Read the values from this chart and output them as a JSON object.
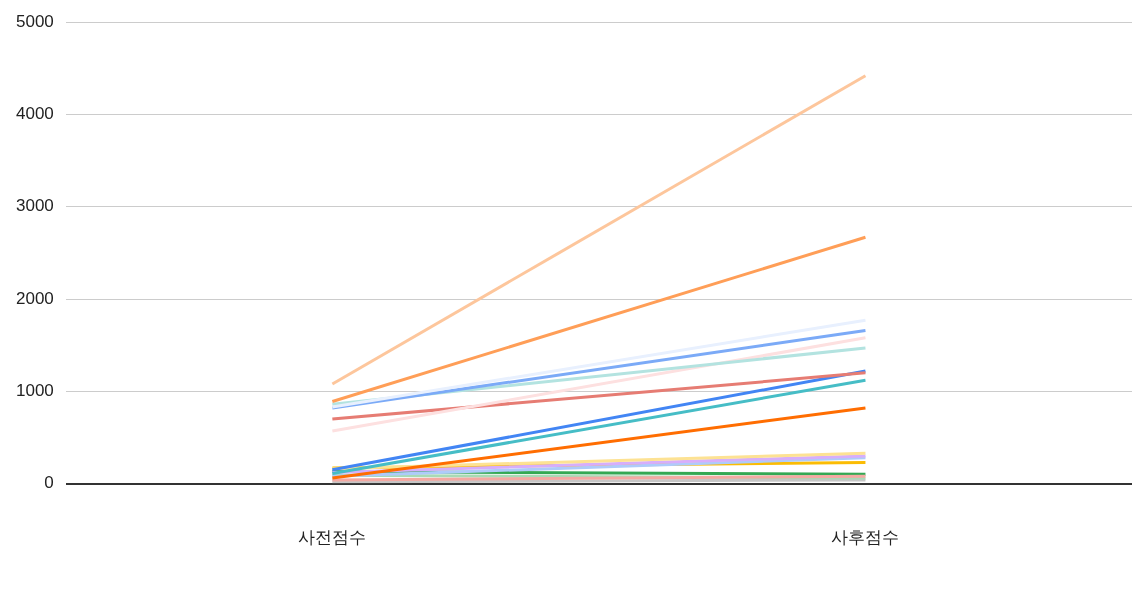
{
  "chart_data": {
    "type": "line",
    "categories": [
      "사전점수",
      "사후점수"
    ],
    "series": [
      {
        "color": "#fdc69c",
        "values": [
          1080,
          4420
        ]
      },
      {
        "color": "#ff9e57",
        "values": [
          890,
          2670
        ]
      },
      {
        "color": "#e8f0fe",
        "values": [
          830,
          1770
        ]
      },
      {
        "color": "#7baaf7",
        "values": [
          820,
          1660
        ]
      },
      {
        "color": "#b3e3e0",
        "values": [
          860,
          1470
        ]
      },
      {
        "color": "#fde0e0",
        "values": [
          570,
          1580
        ]
      },
      {
        "color": "#e67c73",
        "values": [
          700,
          1200
        ]
      },
      {
        "color": "#4285f4",
        "values": [
          150,
          1220
        ]
      },
      {
        "color": "#46bdc6",
        "values": [
          110,
          1120
        ]
      },
      {
        "color": "#ff6d01",
        "values": [
          60,
          820
        ]
      },
      {
        "color": "#fde293",
        "values": [
          160,
          330
        ]
      },
      {
        "color": "#d7aefb",
        "values": [
          120,
          300
        ]
      },
      {
        "color": "#aecbfa",
        "values": [
          80,
          280
        ]
      },
      {
        "color": "#fbbc04",
        "values": [
          170,
          230
        ]
      },
      {
        "color": "#f4a9a3",
        "values": [
          40,
          80
        ]
      },
      {
        "color": "#a8dab5",
        "values": [
          90,
          60
        ]
      },
      {
        "color": "#34a853",
        "values": [
          130,
          100
        ]
      },
      {
        "color": "#c6c6c6",
        "values": [
          20,
          40
        ]
      }
    ],
    "ylim": [
      0,
      5000
    ],
    "yticks": [
      0,
      1000,
      2000,
      3000,
      4000,
      5000
    ],
    "grid": "y",
    "legend": false,
    "marker": "none",
    "line_style": "solid"
  }
}
